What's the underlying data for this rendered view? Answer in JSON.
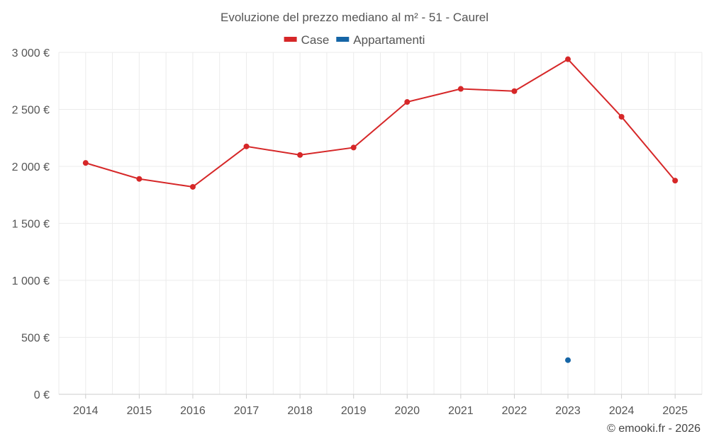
{
  "chart_data": {
    "type": "line",
    "title": "Evoluzione del prezzo mediano al m² - 51 - Caurel",
    "categories": [
      "2014",
      "2015",
      "2016",
      "2017",
      "2018",
      "2019",
      "2020",
      "2021",
      "2022",
      "2023",
      "2024",
      "2025"
    ],
    "ylim": [
      0,
      3000
    ],
    "yticks": [
      0,
      500,
      1000,
      1500,
      2000,
      2500,
      3000
    ],
    "ytick_labels": [
      "0 €",
      "500 €",
      "1 000 €",
      "1 500 €",
      "2 000 €",
      "2 500 €",
      "3 000 €"
    ],
    "grid": true,
    "legend_position": "top-center",
    "series": [
      {
        "name": "Case",
        "color": "#d62728",
        "values": [
          2030,
          1890,
          1820,
          2175,
          2100,
          2165,
          2565,
          2680,
          2660,
          2940,
          2435,
          1875
        ]
      },
      {
        "name": "Appartamenti",
        "color": "#1565a6",
        "values": [
          null,
          null,
          null,
          null,
          null,
          null,
          null,
          null,
          null,
          300,
          null,
          null
        ]
      }
    ]
  },
  "credit": "© emooki.fr - 2026"
}
